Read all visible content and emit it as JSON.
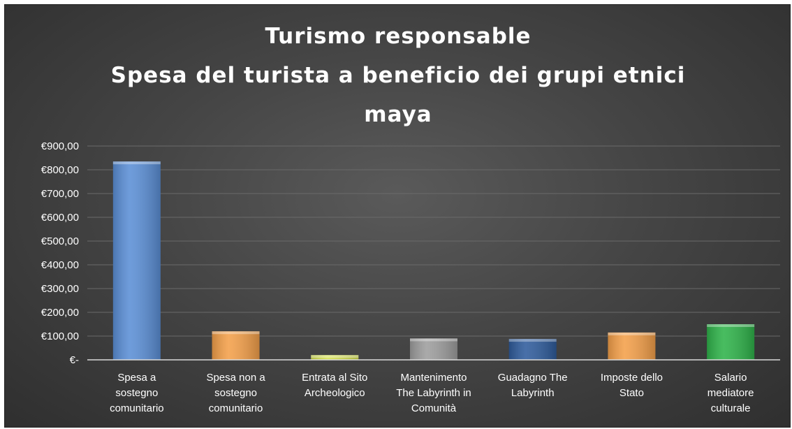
{
  "chart_data": {
    "type": "bar",
    "title_lines": [
      "Turismo responsable",
      "Spesa del turista a beneficio dei grupi etnici",
      "maya"
    ],
    "categories": [
      [
        "Spesa a",
        "sostegno",
        "comunitario"
      ],
      [
        "Spesa non a",
        "sostegno",
        "comunitario"
      ],
      [
        "Entrata al Sito",
        "Archeologico"
      ],
      [
        "Mantenimento",
        "The Labyrinth in",
        "Comunità"
      ],
      [
        "Guadagno The",
        "Labyrinth"
      ],
      [
        "Imposte dello",
        "Stato"
      ],
      [
        "Salario",
        "mediatore",
        "culturale"
      ]
    ],
    "values": [
      835,
      120,
      20,
      90,
      88,
      115,
      150
    ],
    "bar_colors": [
      "#5b8fd6",
      "#f4a04a",
      "#d4e04a",
      "#9e9e9e",
      "#2f5c9c",
      "#f4a04a",
      "#2fb34a"
    ],
    "ylim": [
      0,
      900
    ],
    "y_ticks": [
      {
        "value": 0,
        "label": "€-"
      },
      {
        "value": 100,
        "label": "€100,00"
      },
      {
        "value": 200,
        "label": "€200,00"
      },
      {
        "value": 300,
        "label": "€300,00"
      },
      {
        "value": 400,
        "label": "€400,00"
      },
      {
        "value": 500,
        "label": "€500,00"
      },
      {
        "value": 600,
        "label": "€600,00"
      },
      {
        "value": 700,
        "label": "€700,00"
      },
      {
        "value": 800,
        "label": "€800,00"
      },
      {
        "value": 900,
        "label": "€900,00"
      }
    ],
    "grid": true,
    "legend": "none"
  }
}
